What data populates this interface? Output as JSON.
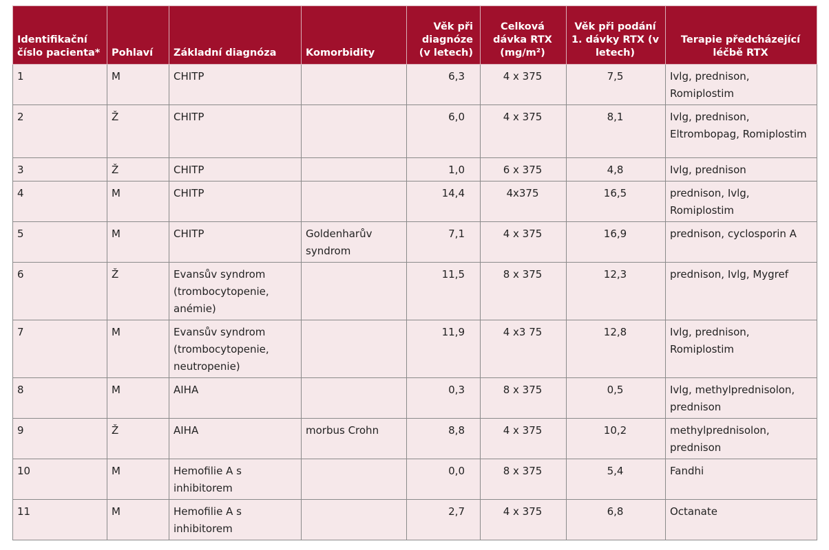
{
  "table": {
    "header": [
      "Identifikační číslo pacienta*",
      "Pohlaví",
      "Základní diagnóza",
      "Komorbidity",
      "Věk při diagnóze (v letech)",
      "Celková dávka RTX (mg/m²)",
      "Věk při podání 1. dávky RTX (v letech)",
      "Terapie předcházející léčbě RTX"
    ],
    "rows": [
      [
        "1",
        "M",
        "CHITP",
        null,
        "6,3",
        "4 x 375",
        "7,5",
        "Ivlg, prednison, Romiplostim"
      ],
      [
        "2",
        "Ž",
        "CHITP",
        null,
        "6,0",
        "4 x 375",
        "8,1",
        "Ivlg, prednison, Eltrombopag, Romiplostim"
      ],
      [
        "3",
        "Ž",
        "CHITP",
        null,
        "1,0",
        "6 x 375",
        "4,8",
        "Ivlg, prednison"
      ],
      [
        "4",
        "M",
        "CHITP",
        null,
        "14,4",
        "4x375",
        "16,5",
        "prednison, Ivlg, Romiplostim"
      ],
      [
        "5",
        "M",
        "CHITP",
        "Goldenharův syndrom",
        "7,1",
        "4 x 375",
        "16,9",
        "prednison, cyclosporin A"
      ],
      [
        "6",
        "Ž",
        "Evansův syndrom (trombocytopenie, anémie)",
        null,
        "11,5",
        "8 x 375",
        "12,3",
        "prednison, Ivlg, Mygref"
      ],
      [
        "7",
        "M",
        "Evansův syndrom (trombocytopenie, neutropenie)",
        null,
        "11,9",
        "4 x3 75",
        "12,8",
        "Ivlg, prednison, Romiplostim"
      ],
      [
        "8",
        "M",
        "AIHA",
        null,
        "0,3",
        "8 x 375",
        "0,5",
        "Ivlg, methylprednisolon, prednison"
      ],
      [
        "9",
        "Ž",
        "AIHA",
        "morbus Crohn",
        "8,8",
        "4 x 375",
        "10,2",
        "methylprednisolon, prednison"
      ],
      [
        "10",
        "M",
        "Hemofilie A s inhibitorem",
        null,
        "0,0",
        "8 x 375",
        "5,4",
        "Fandhi"
      ],
      [
        "11",
        "M",
        "Hemofilie A s inhibitorem",
        null,
        "2,7",
        "4 x 375",
        "6,8",
        "Octanate"
      ]
    ]
  }
}
